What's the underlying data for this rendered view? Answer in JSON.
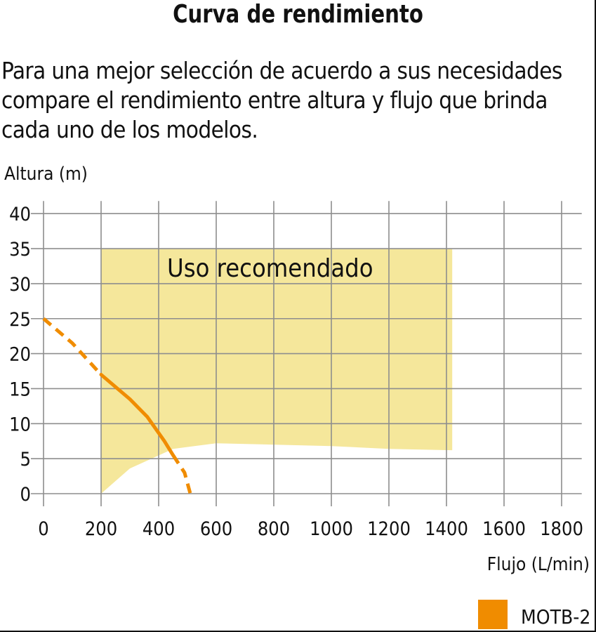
{
  "header": {
    "title": "Curva de rendimiento",
    "intro_lines": [
      "Para una mejor selección de acuerdo a sus necesidades",
      "compare el rendimiento entre altura y flujo que brinda",
      "cada uno de los modelos."
    ]
  },
  "chart_data": {
    "type": "line",
    "xlabel": "Flujo (L/min)",
    "ylabel": "Altura (m)",
    "xlim": [
      0,
      1870
    ],
    "ylim": [
      0,
      40
    ],
    "x_ticks": [
      0,
      200,
      400,
      600,
      800,
      1000,
      1200,
      1400,
      1600,
      1800
    ],
    "y_ticks": [
      0,
      5,
      10,
      15,
      20,
      25,
      30,
      35,
      40
    ],
    "grid": true,
    "recommended_region": {
      "label": "Uso recomendado",
      "color": "#f5e79b",
      "top": 35,
      "x_range": [
        200,
        1420
      ],
      "lower_boundary": [
        [
          200,
          0
        ],
        [
          300,
          3.6
        ],
        [
          450,
          6.4
        ],
        [
          600,
          7.2
        ],
        [
          1000,
          6.8
        ],
        [
          1200,
          6.4
        ],
        [
          1420,
          6.2
        ]
      ]
    },
    "series": [
      {
        "name": "MOTB-2",
        "color": "#f08c00",
        "solid": [
          [
            200,
            17
          ],
          [
            300,
            13.5
          ],
          [
            360,
            11
          ],
          [
            420,
            7.5
          ],
          [
            450,
            5.5
          ]
        ],
        "dashed_segments": [
          [
            [
              0,
              25
            ],
            [
              100,
              21.5
            ],
            [
              200,
              17
            ]
          ],
          [
            [
              450,
              5.5
            ],
            [
              490,
              3
            ],
            [
              510,
              0
            ]
          ]
        ]
      }
    ],
    "legend": {
      "position": "bottom-right"
    }
  }
}
